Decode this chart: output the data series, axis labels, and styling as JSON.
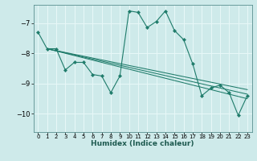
{
  "xlabel": "Humidex (Indice chaleur)",
  "background_color": "#ceeaea",
  "grid_color": "#e8f8f8",
  "line_color": "#1e7b6a",
  "xlim": [
    -0.5,
    23.5
  ],
  "ylim": [
    -10.6,
    -6.4
  ],
  "yticks": [
    -10,
    -9,
    -8,
    -7
  ],
  "xticks": [
    0,
    1,
    2,
    3,
    4,
    5,
    6,
    7,
    8,
    9,
    10,
    11,
    12,
    13,
    14,
    15,
    16,
    17,
    18,
    19,
    20,
    21,
    22,
    23
  ],
  "series_main": {
    "x": [
      0,
      1,
      2,
      3,
      4,
      5,
      6,
      7,
      8,
      9,
      10,
      11,
      12,
      13,
      14,
      15,
      16,
      17,
      18,
      19,
      20,
      21,
      22,
      23
    ],
    "y": [
      -7.3,
      -7.85,
      -7.85,
      -8.55,
      -8.3,
      -8.3,
      -8.7,
      -8.75,
      -9.3,
      -8.75,
      -6.6,
      -6.65,
      -7.15,
      -6.95,
      -6.6,
      -7.25,
      -7.55,
      -8.35,
      -9.4,
      -9.15,
      -9.05,
      -9.3,
      -10.05,
      -9.4
    ]
  },
  "series_lines": [
    {
      "x": [
        1,
        23
      ],
      "y": [
        -7.85,
        -9.5
      ]
    },
    {
      "x": [
        1,
        23
      ],
      "y": [
        -7.85,
        -9.2
      ]
    },
    {
      "x": [
        1,
        23
      ],
      "y": [
        -7.85,
        -9.35
      ]
    }
  ]
}
